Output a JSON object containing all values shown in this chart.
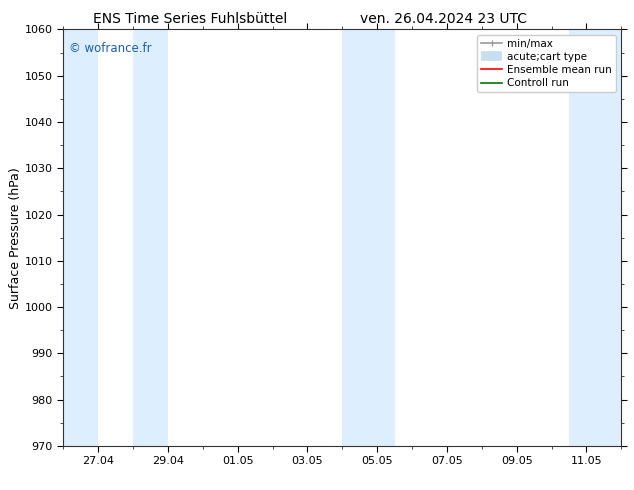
{
  "title_left": "ENS Time Series Fuhlsbüttel",
  "title_right": "ven. 26.04.2024 23 UTC",
  "ylabel": "Surface Pressure (hPa)",
  "ylim": [
    970,
    1060
  ],
  "yticks": [
    970,
    980,
    990,
    1000,
    1010,
    1020,
    1030,
    1040,
    1050,
    1060
  ],
  "xtick_labels": [
    "27.04",
    "29.04",
    "01.05",
    "03.05",
    "05.05",
    "07.05",
    "09.05",
    "11.05"
  ],
  "xtick_positions": [
    1,
    3,
    5,
    7,
    9,
    11,
    13,
    15
  ],
  "xlim": [
    0,
    16
  ],
  "watermark": "© wofrance.fr",
  "watermark_color": "#1a5fb4",
  "bg_color": "#ffffff",
  "shaded_bands": [
    {
      "x_start": 0.0,
      "x_end": 1.0,
      "color": "#ddeeff"
    },
    {
      "x_start": 2.0,
      "x_end": 3.0,
      "color": "#ddeeff"
    },
    {
      "x_start": 8.0,
      "x_end": 9.5,
      "color": "#ddeeff"
    },
    {
      "x_start": 14.5,
      "x_end": 16.0,
      "color": "#ddeeff"
    }
  ],
  "legend_entries": [
    {
      "label": "min/max",
      "color": "#999999"
    },
    {
      "label": "acute;cart type",
      "color": "#c8dff0"
    },
    {
      "label": "Ensemble mean run",
      "color": "#ff0000"
    },
    {
      "label": "Controll run",
      "color": "#007700"
    }
  ],
  "title_fontsize": 10,
  "tick_fontsize": 8,
  "ylabel_fontsize": 9,
  "legend_fontsize": 7.5
}
